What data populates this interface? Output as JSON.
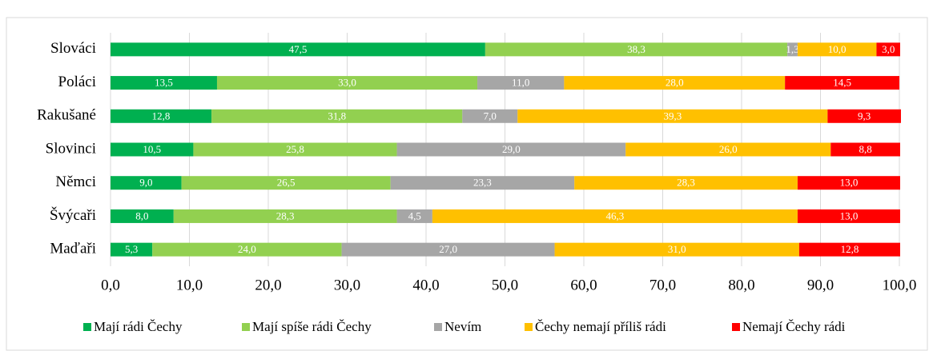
{
  "chart_data": {
    "type": "stacked-bar-horizontal",
    "categories": [
      "Slováci",
      "Poláci",
      "Rakušané",
      "Slovinci",
      "Němci",
      "Švýcaři",
      "Maďaři"
    ],
    "series": [
      {
        "name": "Mají rádi Čechy",
        "color": "#00b050",
        "values": [
          47.5,
          13.5,
          12.8,
          10.5,
          9.0,
          8.0,
          5.3
        ],
        "value_labels": [
          "47,5",
          "13,5",
          "12,8",
          "10,5",
          "9,0",
          "8,0",
          "5,3"
        ]
      },
      {
        "name": "Mají spíše rádi Čechy",
        "color": "#92d050",
        "values": [
          38.3,
          33.0,
          31.8,
          25.8,
          26.5,
          28.3,
          24.0
        ],
        "value_labels": [
          "38,3",
          "33,0",
          "31,8",
          "25,8",
          "26,5",
          "28,3",
          "24,0"
        ]
      },
      {
        "name": "Nevím",
        "color": "#a6a6a6",
        "values": [
          1.3,
          11.0,
          7.0,
          29.0,
          23.3,
          4.5,
          27.0
        ],
        "value_labels": [
          "1,3",
          "11,0",
          "7,0",
          "29,0",
          "23,3",
          "4,5",
          "27,0"
        ]
      },
      {
        "name": "Čechy nemají příliš rádi",
        "color": "#ffc000",
        "values": [
          10.0,
          28.0,
          39.3,
          26.0,
          28.3,
          46.3,
          31.0
        ],
        "value_labels": [
          "10,0",
          "28,0",
          "39,3",
          "26,0",
          "28,3",
          "46,3",
          "31,0"
        ]
      },
      {
        "name": "Nemají Čechy rádi",
        "color": "#ff0000",
        "values": [
          3.0,
          14.5,
          9.3,
          8.8,
          13.0,
          13.0,
          12.8
        ],
        "value_labels": [
          "3,0",
          "14,5",
          "9,3",
          "8,8",
          "13,0",
          "13,0",
          "12,8"
        ]
      }
    ],
    "xlim": [
      0,
      100
    ],
    "xticks": [
      {
        "value": 0,
        "label": "0,0"
      },
      {
        "value": 10,
        "label": "10,0"
      },
      {
        "value": 20,
        "label": "20,0"
      },
      {
        "value": 30,
        "label": "30,0"
      },
      {
        "value": 40,
        "label": "40,0"
      },
      {
        "value": 50,
        "label": "50,0"
      },
      {
        "value": 60,
        "label": "60,0"
      },
      {
        "value": 70,
        "label": "70,0"
      },
      {
        "value": 80,
        "label": "80,0"
      },
      {
        "value": 90,
        "label": "90,0"
      },
      {
        "value": 100,
        "label": "100,0"
      }
    ],
    "grid": true,
    "legend": "bottom"
  }
}
